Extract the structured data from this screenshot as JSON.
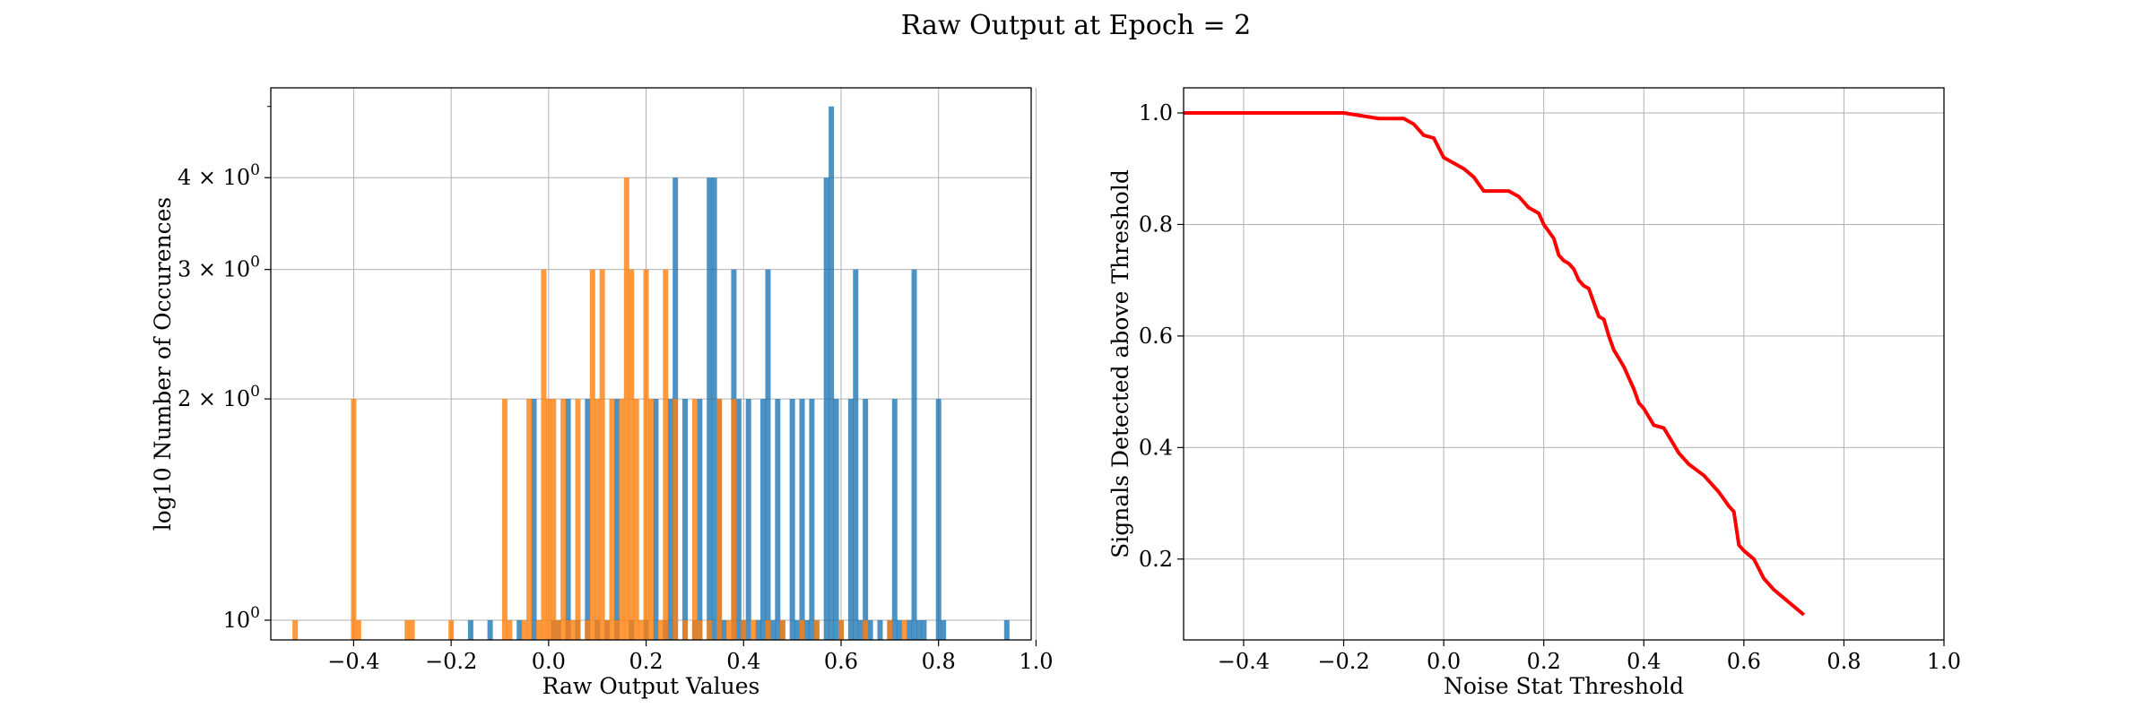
{
  "figure": {
    "suptitle": "Raw Output at Epoch = 2"
  },
  "chart_data": [
    {
      "type": "bar",
      "title": "",
      "xlabel": "Raw Output Values",
      "ylabel": "log10 Number of Occurences",
      "xlim": [
        -0.57,
        0.99
      ],
      "ylim": [
        0.94,
        5.3
      ],
      "yscale": "log",
      "grid": true,
      "bin_width": 0.011,
      "x_ticks": [
        -0.4,
        -0.2,
        0.0,
        0.2,
        0.4,
        0.6,
        0.8,
        1.0
      ],
      "x_tick_labels": [
        "−0.4",
        "−0.2",
        "0.0",
        "0.2",
        "0.4",
        "0.6",
        "0.8",
        "1.0"
      ],
      "y_ticks": [
        {
          "value": 1,
          "base": "10",
          "exp": "0",
          "mantissa": ""
        },
        {
          "value": 2,
          "base": "10",
          "exp": "0",
          "mantissa": "2 × "
        },
        {
          "value": 3,
          "base": "10",
          "exp": "0",
          "mantissa": "3 × "
        },
        {
          "value": 4,
          "base": "10",
          "exp": "0",
          "mantissa": "4 × "
        }
      ],
      "series": [
        {
          "color": "#1f77b4",
          "alpha": 0.8,
          "x": [
            -0.16,
            -0.12,
            -0.06,
            -0.03,
            0.01,
            0.02,
            0.04,
            0.06,
            0.08,
            0.1,
            0.12,
            0.14,
            0.17,
            0.2,
            0.22,
            0.24,
            0.25,
            0.26,
            0.28,
            0.3,
            0.31,
            0.33,
            0.34,
            0.35,
            0.36,
            0.38,
            0.39,
            0.4,
            0.41,
            0.43,
            0.44,
            0.45,
            0.46,
            0.47,
            0.48,
            0.5,
            0.51,
            0.52,
            0.53,
            0.54,
            0.55,
            0.57,
            0.58,
            0.59,
            0.6,
            0.62,
            0.63,
            0.64,
            0.65,
            0.66,
            0.68,
            0.7,
            0.71,
            0.72,
            0.74,
            0.75,
            0.76,
            0.77,
            0.8,
            0.81,
            0.94
          ],
          "values": [
            1,
            1,
            1,
            2,
            1,
            1,
            2,
            1,
            2,
            1,
            1,
            2,
            1,
            1,
            2,
            1,
            2,
            4,
            2,
            1,
            2,
            4,
            4,
            2,
            1,
            3,
            2,
            1,
            2,
            1,
            2,
            3,
            1,
            2,
            1,
            2,
            1,
            2,
            1,
            2,
            1,
            4,
            5,
            2,
            1,
            2,
            3,
            1,
            2,
            1,
            1,
            1,
            2,
            1,
            1,
            3,
            1,
            1,
            2,
            1,
            1
          ]
        },
        {
          "color": "#ff7f0e",
          "alpha": 0.8,
          "x": [
            -0.52,
            -0.4,
            -0.39,
            -0.29,
            -0.28,
            -0.2,
            -0.09,
            -0.08,
            -0.05,
            -0.04,
            -0.02,
            -0.01,
            0.0,
            0.01,
            0.02,
            0.03,
            0.04,
            0.05,
            0.06,
            0.08,
            0.09,
            0.1,
            0.11,
            0.12,
            0.13,
            0.14,
            0.15,
            0.16,
            0.17,
            0.18,
            0.19,
            0.2,
            0.21,
            0.23,
            0.24,
            0.26,
            0.28,
            0.3,
            0.31,
            0.33,
            0.35,
            0.37,
            0.38,
            0.4,
            0.42,
            0.45,
            0.48,
            0.52,
            0.55,
            0.6,
            0.65,
            0.7,
            0.73
          ],
          "values": [
            1,
            2,
            1,
            1,
            1,
            1,
            2,
            1,
            1,
            2,
            1,
            3,
            2,
            2,
            1,
            2,
            1,
            1,
            2,
            1,
            3,
            2,
            3,
            1,
            2,
            1,
            2,
            4,
            3,
            2,
            1,
            3,
            2,
            1,
            3,
            2,
            1,
            2,
            1,
            1,
            2,
            1,
            2,
            1,
            1,
            1,
            1,
            1,
            1,
            1,
            1,
            1,
            1
          ]
        }
      ]
    },
    {
      "type": "line",
      "title": "",
      "xlabel": "Noise Stat Threshold",
      "ylabel": "Signals Detected above Threshold",
      "xlim": [
        -0.52,
        1.0
      ],
      "ylim": [
        0.055,
        1.045
      ],
      "grid": true,
      "x_ticks": [
        -0.4,
        -0.2,
        0.0,
        0.2,
        0.4,
        0.6,
        0.8,
        1.0
      ],
      "x_tick_labels": [
        "−0.4",
        "−0.2",
        "0.0",
        "0.2",
        "0.4",
        "0.6",
        "0.8",
        "1.0"
      ],
      "y_ticks": [
        0.2,
        0.4,
        0.6,
        0.8,
        1.0
      ],
      "y_tick_labels": [
        "0.2",
        "0.4",
        "0.6",
        "0.8",
        "1.0"
      ],
      "series": [
        {
          "color": "#ff0000",
          "x": [
            -0.52,
            -0.2,
            -0.13,
            -0.08,
            -0.06,
            -0.04,
            -0.02,
            0.0,
            0.02,
            0.04,
            0.06,
            0.08,
            0.1,
            0.13,
            0.15,
            0.17,
            0.19,
            0.2,
            0.22,
            0.23,
            0.24,
            0.25,
            0.26,
            0.27,
            0.28,
            0.29,
            0.3,
            0.31,
            0.32,
            0.33,
            0.34,
            0.35,
            0.36,
            0.37,
            0.38,
            0.39,
            0.4,
            0.41,
            0.42,
            0.44,
            0.45,
            0.47,
            0.49,
            0.52,
            0.55,
            0.57,
            0.58,
            0.59,
            0.6,
            0.62,
            0.64,
            0.66,
            0.68,
            0.7,
            0.72
          ],
          "values": [
            1.0,
            1.0,
            0.99,
            0.99,
            0.98,
            0.96,
            0.955,
            0.92,
            0.91,
            0.9,
            0.885,
            0.86,
            0.86,
            0.86,
            0.85,
            0.83,
            0.82,
            0.8,
            0.775,
            0.745,
            0.735,
            0.73,
            0.72,
            0.7,
            0.69,
            0.685,
            0.66,
            0.635,
            0.63,
            0.6,
            0.575,
            0.56,
            0.545,
            0.525,
            0.505,
            0.48,
            0.47,
            0.455,
            0.44,
            0.435,
            0.42,
            0.39,
            0.37,
            0.35,
            0.32,
            0.295,
            0.285,
            0.225,
            0.215,
            0.2,
            0.165,
            0.145,
            0.13,
            0.115,
            0.1
          ]
        }
      ]
    }
  ]
}
